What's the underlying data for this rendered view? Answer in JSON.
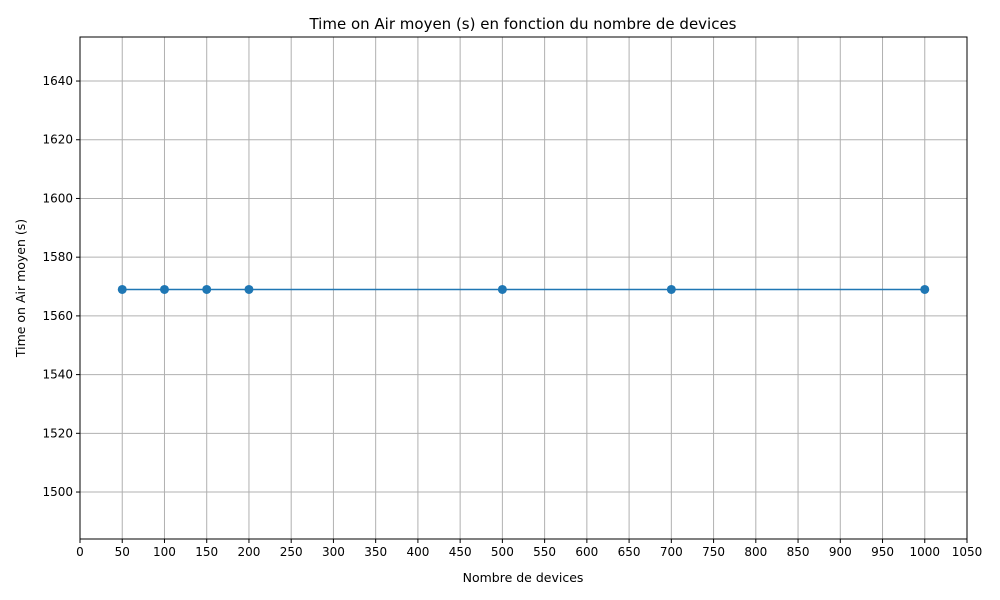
{
  "chart_data": {
    "type": "line",
    "title": "Time on Air moyen (s) en fonction du nombre de devices",
    "xlabel": "Nombre de devices",
    "ylabel": "Time on Air moyen (s)",
    "xlim": [
      0,
      1050
    ],
    "ylim": [
      1484,
      1655
    ],
    "x_ticks": [
      0,
      50,
      100,
      150,
      200,
      250,
      300,
      350,
      400,
      450,
      500,
      550,
      600,
      650,
      700,
      750,
      800,
      850,
      900,
      950,
      1000,
      1050
    ],
    "y_ticks": [
      1500,
      1520,
      1540,
      1560,
      1580,
      1600,
      1620,
      1640
    ],
    "grid": true,
    "series": [
      {
        "name": "Time on Air moyen",
        "color": "#1f77b4",
        "marker": "circle",
        "x": [
          50,
          100,
          150,
          200,
          500,
          700,
          1000
        ],
        "values": [
          1569,
          1569,
          1569,
          1569,
          1569,
          1569,
          1569
        ]
      }
    ]
  }
}
